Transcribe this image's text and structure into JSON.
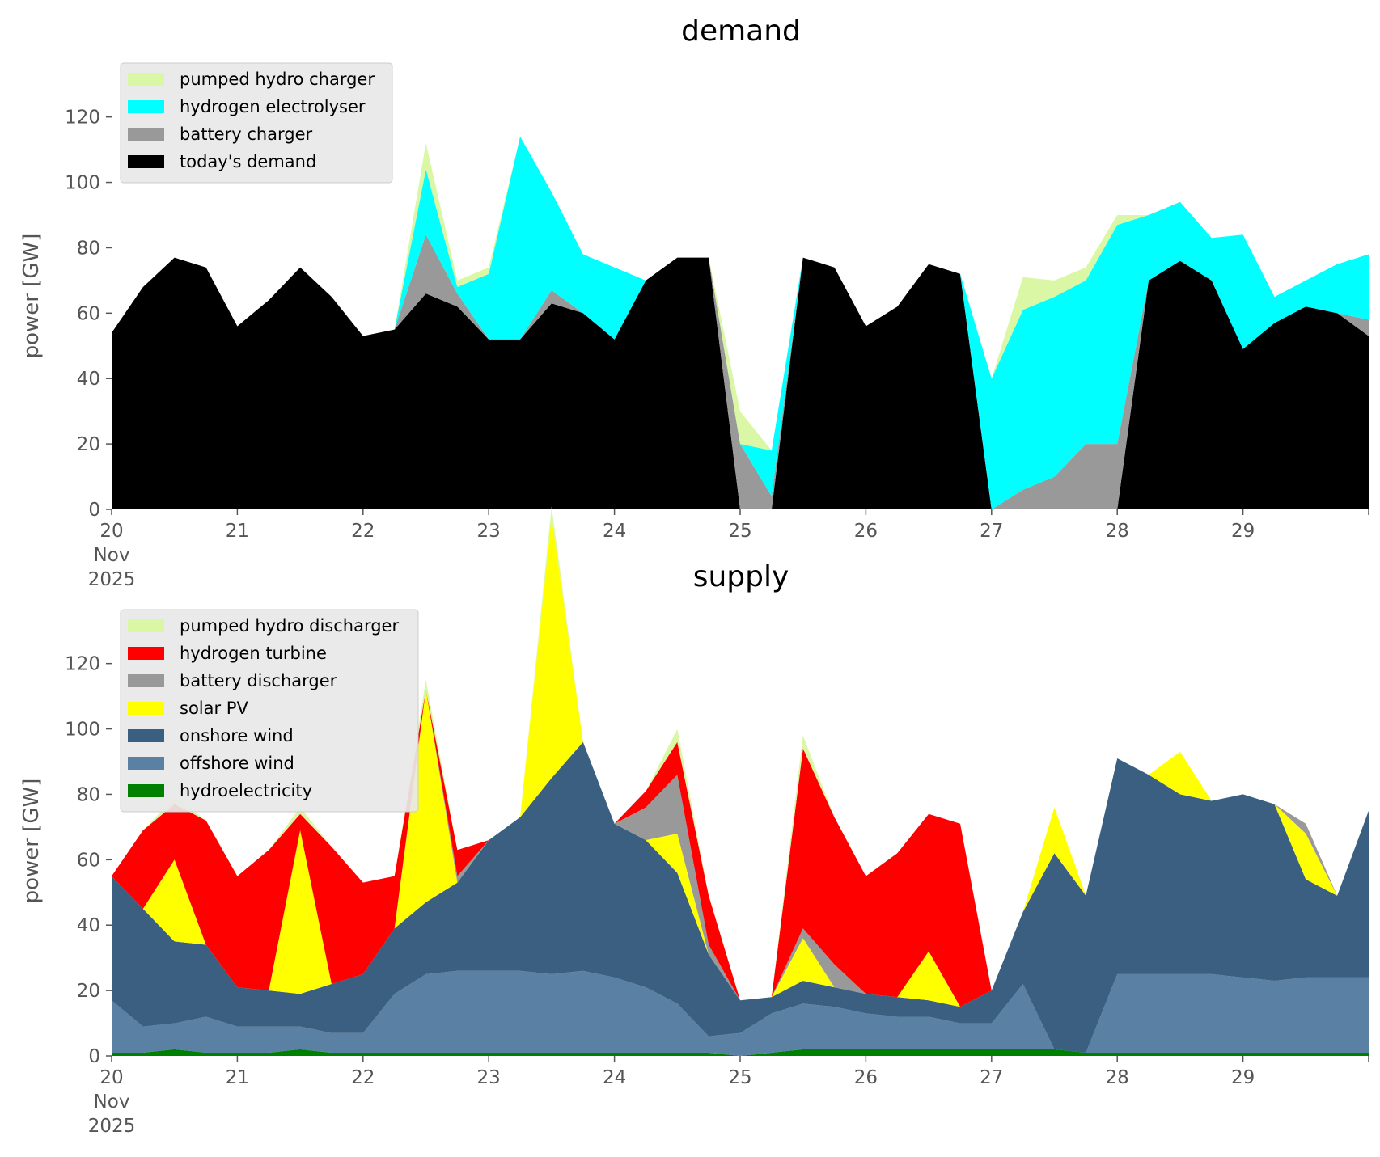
{
  "chart_data": [
    {
      "type": "area",
      "title": "demand",
      "ylabel": "power [GW]",
      "ylim": [
        0,
        135
      ],
      "yticks": [
        "0",
        "20",
        "40",
        "60",
        "80",
        "100",
        "120"
      ],
      "xlim": [
        "2025-11-20",
        "2025-11-30"
      ],
      "xticks": [
        "20",
        "21",
        "22",
        "23",
        "24",
        "25",
        "26",
        "27",
        "28",
        "29"
      ],
      "x_month": "Nov",
      "x_year": "2025",
      "legend": "upper-left",
      "x": [
        "2025-11-20 00:00",
        "2025-11-20 06:00",
        "2025-11-20 12:00",
        "2025-11-20 18:00",
        "2025-11-21 00:00",
        "2025-11-21 06:00",
        "2025-11-21 12:00",
        "2025-11-21 18:00",
        "2025-11-22 00:00",
        "2025-11-22 06:00",
        "2025-11-22 12:00",
        "2025-11-22 18:00",
        "2025-11-23 00:00",
        "2025-11-23 06:00",
        "2025-11-23 12:00",
        "2025-11-23 18:00",
        "2025-11-24 00:00",
        "2025-11-24 06:00",
        "2025-11-24 12:00",
        "2025-11-24 18:00",
        "2025-11-25 00:00",
        "2025-11-25 06:00",
        "2025-11-25 12:00",
        "2025-11-25 18:00",
        "2025-11-26 00:00",
        "2025-11-26 06:00",
        "2025-11-26 12:00",
        "2025-11-26 18:00",
        "2025-11-27 00:00",
        "2025-11-27 06:00",
        "2025-11-27 12:00",
        "2025-11-27 18:00",
        "2025-11-28 00:00",
        "2025-11-28 06:00",
        "2025-11-28 12:00",
        "2025-11-28 18:00",
        "2025-11-29 00:00",
        "2025-11-29 06:00",
        "2025-11-29 12:00",
        "2025-11-29 18:00",
        "2025-11-30 00:00"
      ],
      "series": [
        {
          "name": "today's demand",
          "color": "#000000",
          "values": [
            54,
            68,
            77,
            74,
            56,
            64,
            74,
            65,
            53,
            55,
            66,
            62,
            52,
            52,
            63,
            60,
            52,
            70,
            77,
            77,
            0,
            0,
            77,
            74,
            56,
            62,
            75,
            72,
            0,
            0,
            0,
            0,
            0,
            70,
            76,
            70,
            49,
            57,
            62,
            60,
            53
          ]
        },
        {
          "name": "battery charger",
          "color": "#999999",
          "values": [
            0,
            0,
            0,
            0,
            0,
            0,
            0,
            0,
            0,
            0,
            18,
            4,
            0,
            0,
            4,
            0,
            0,
            0,
            0,
            0,
            20,
            4,
            0,
            0,
            0,
            0,
            0,
            0,
            0,
            6,
            10,
            20,
            20,
            0,
            0,
            0,
            0,
            0,
            0,
            0,
            5
          ]
        },
        {
          "name": "hydrogen electrolyser",
          "color": "#00ffff",
          "values": [
            0,
            0,
            0,
            0,
            0,
            0,
            0,
            0,
            0,
            0,
            20,
            2,
            20,
            62,
            30,
            18,
            22,
            0,
            0,
            0,
            0,
            14,
            0,
            0,
            0,
            0,
            0,
            0,
            40,
            55,
            55,
            50,
            67,
            20,
            18,
            13,
            35,
            8,
            8,
            15,
            20
          ]
        },
        {
          "name": "pumped hydro charger",
          "color": "#d9f7a5",
          "values": [
            0,
            0,
            0,
            0,
            0,
            0,
            0,
            0,
            0,
            0,
            8,
            2,
            2,
            0,
            0,
            0,
            0,
            0,
            0,
            0,
            10,
            0,
            0,
            0,
            0,
            0,
            0,
            0,
            0,
            10,
            5,
            4,
            3,
            0,
            0,
            0,
            0,
            0,
            0,
            0,
            0
          ]
        }
      ]
    },
    {
      "type": "area",
      "title": "supply",
      "ylabel": "power [GW]",
      "ylim": [
        0,
        135
      ],
      "yticks": [
        "0",
        "20",
        "40",
        "60",
        "80",
        "100",
        "120"
      ],
      "xlim": [
        "2025-11-20",
        "2025-11-30"
      ],
      "xticks": [
        "20",
        "21",
        "22",
        "23",
        "24",
        "25",
        "26",
        "27",
        "28",
        "29"
      ],
      "x_month": "Nov",
      "x_year": "2025",
      "legend": "upper-left",
      "x": [
        "2025-11-20 00:00",
        "2025-11-20 06:00",
        "2025-11-20 12:00",
        "2025-11-20 18:00",
        "2025-11-21 00:00",
        "2025-11-21 06:00",
        "2025-11-21 12:00",
        "2025-11-21 18:00",
        "2025-11-22 00:00",
        "2025-11-22 06:00",
        "2025-11-22 12:00",
        "2025-11-22 18:00",
        "2025-11-23 00:00",
        "2025-11-23 06:00",
        "2025-11-23 12:00",
        "2025-11-23 18:00",
        "2025-11-24 00:00",
        "2025-11-24 06:00",
        "2025-11-24 12:00",
        "2025-11-24 18:00",
        "2025-11-25 00:00",
        "2025-11-25 06:00",
        "2025-11-25 12:00",
        "2025-11-25 18:00",
        "2025-11-26 00:00",
        "2025-11-26 06:00",
        "2025-11-26 12:00",
        "2025-11-26 18:00",
        "2025-11-27 00:00",
        "2025-11-27 06:00",
        "2025-11-27 12:00",
        "2025-11-27 18:00",
        "2025-11-28 00:00",
        "2025-11-28 06:00",
        "2025-11-28 12:00",
        "2025-11-28 18:00",
        "2025-11-29 00:00",
        "2025-11-29 06:00",
        "2025-11-29 12:00",
        "2025-11-29 18:00",
        "2025-11-30 00:00"
      ],
      "series": [
        {
          "name": "hydroelectricity",
          "color": "#008000",
          "values": [
            1,
            1,
            2,
            1,
            1,
            1,
            2,
            1,
            1,
            1,
            1,
            1,
            1,
            1,
            1,
            1,
            1,
            1,
            1,
            1,
            0,
            1,
            2,
            2,
            2,
            2,
            2,
            2,
            2,
            2,
            2,
            1,
            1,
            1,
            1,
            1,
            1,
            1,
            1,
            1,
            1
          ]
        },
        {
          "name": "offshore wind",
          "color": "#5a80a3",
          "values": [
            16,
            8,
            8,
            11,
            8,
            8,
            7,
            6,
            6,
            18,
            24,
            25,
            25,
            25,
            24,
            25,
            23,
            20,
            15,
            5,
            7,
            12,
            14,
            13,
            11,
            10,
            10,
            8,
            8,
            20,
            0,
            0,
            24,
            24,
            24,
            24,
            23,
            22,
            23,
            23,
            23
          ]
        },
        {
          "name": "onshore wind",
          "color": "#3a5f80",
          "values": [
            38,
            36,
            25,
            22,
            12,
            11,
            10,
            15,
            18,
            20,
            22,
            27,
            40,
            47,
            60,
            70,
            47,
            45,
            40,
            25,
            10,
            5,
            7,
            6,
            6,
            6,
            5,
            5,
            10,
            22,
            60,
            48,
            66,
            61,
            55,
            53,
            56,
            54,
            30,
            25,
            51
          ]
        },
        {
          "name": "solar PV",
          "color": "#ffff00",
          "values": [
            0,
            0,
            25,
            0,
            0,
            0,
            50,
            0,
            0,
            0,
            65,
            0,
            0,
            0,
            80,
            0,
            0,
            0,
            12,
            0,
            0,
            0,
            13,
            0,
            0,
            0,
            15,
            0,
            0,
            0,
            14,
            0,
            0,
            0,
            13,
            0,
            0,
            0,
            14,
            0,
            0
          ]
        },
        {
          "name": "battery discharger",
          "color": "#999999",
          "values": [
            0,
            0,
            0,
            0,
            0,
            0,
            0,
            0,
            0,
            0,
            0,
            2,
            0,
            0,
            0,
            0,
            0,
            10,
            18,
            3,
            0,
            0,
            3,
            7,
            0,
            0,
            0,
            0,
            0,
            0,
            0,
            0,
            0,
            0,
            0,
            0,
            0,
            0,
            3,
            0,
            0
          ]
        },
        {
          "name": "hydrogen turbine",
          "color": "#ff0000",
          "values": [
            0,
            24,
            17,
            38,
            34,
            43,
            5,
            42,
            28,
            16,
            0,
            8,
            0,
            0,
            0,
            0,
            0,
            5,
            10,
            15,
            0,
            0,
            55,
            45,
            36,
            44,
            42,
            56,
            0,
            0,
            0,
            0,
            0,
            0,
            0,
            0,
            0,
            0,
            0,
            0,
            0
          ]
        },
        {
          "name": "pumped hydro discharger",
          "color": "#d9f7a5",
          "values": [
            0,
            0,
            2,
            0,
            0,
            0,
            2,
            0,
            0,
            0,
            3,
            0,
            0,
            0,
            3,
            0,
            0,
            0,
            4,
            0,
            0,
            0,
            4,
            0,
            0,
            0,
            0,
            0,
            0,
            0,
            0,
            0,
            0,
            0,
            0,
            0,
            0,
            0,
            0,
            0,
            0
          ]
        }
      ]
    }
  ]
}
